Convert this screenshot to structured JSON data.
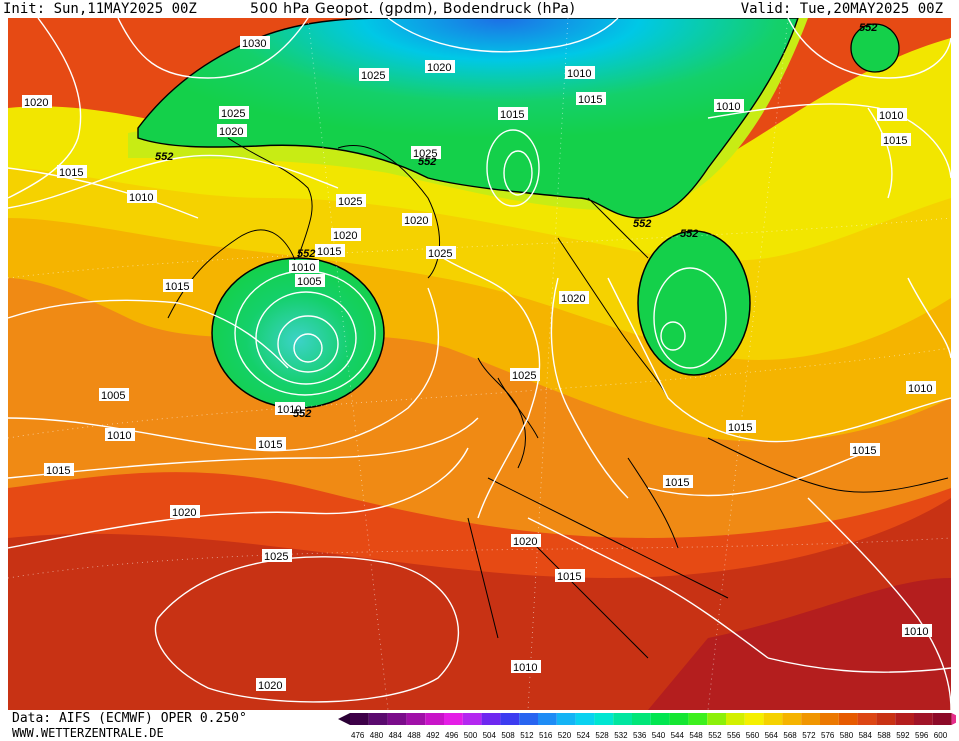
{
  "header": {
    "init": "Init: Sun,11MAY2025 00Z",
    "title": "500 hPa Geopot. (gpdm), Bodendruck (hPa)",
    "valid": "Valid: Tue,20MAY2025 00Z"
  },
  "footer": {
    "data_source": "Data: AIFS (ECMWF) OPER 0.250°",
    "url": "WWW.WETTERZENTRALE.DE"
  },
  "colorbar": {
    "ticks": [
      "476",
      "480",
      "484",
      "488",
      "492",
      "496",
      "500",
      "504",
      "508",
      "512",
      "516",
      "520",
      "524",
      "528",
      "532",
      "536",
      "540",
      "544",
      "548",
      "552",
      "556",
      "560",
      "564",
      "568",
      "572",
      "576",
      "580",
      "584",
      "588",
      "592",
      "596",
      "600"
    ],
    "colors": [
      "#3d0048",
      "#5a0a6e",
      "#7a0c8a",
      "#a010a8",
      "#c814c8",
      "#e41ee6",
      "#b428f0",
      "#6e28f0",
      "#3c3cf0",
      "#2864f0",
      "#1e8cf5",
      "#14b4f5",
      "#0ad2f0",
      "#00e6d2",
      "#00e6a0",
      "#00e678",
      "#00e650",
      "#14e632",
      "#3cf01e",
      "#8cf00a",
      "#d2f000",
      "#f5f000",
      "#f5d200",
      "#f5b400",
      "#f09600",
      "#eb7800",
      "#e65a00",
      "#dc4614",
      "#c83214",
      "#b41e1e",
      "#a01428",
      "#8c0a28"
    ]
  },
  "map": {
    "pressure_labels": [
      "1030",
      "1025",
      "1020",
      "1025",
      "1020",
      "1015",
      "1010",
      "1015",
      "1010",
      "1020",
      "1015",
      "1010",
      "1005",
      "1010",
      "1015",
      "1025",
      "1020",
      "1025",
      "1020",
      "1015",
      "1005",
      "1010",
      "1015",
      "1010",
      "1015",
      "1025",
      "1020",
      "1015",
      "1020",
      "1015",
      "1025",
      "1010",
      "1015",
      "1010",
      "1015",
      "1025",
      "1020",
      "1010",
      "1020",
      "1015",
      "1010"
    ],
    "geopot_labels": [
      "552",
      "552",
      "552",
      "552",
      "552",
      "552",
      "552"
    ],
    "colors": {
      "warm_red": "#e0501e",
      "orange": "#f08a14",
      "yellow": "#f2e600",
      "green": "#14d04a",
      "cyan": "#00c8e6",
      "blue": "#1e6ee6"
    }
  }
}
